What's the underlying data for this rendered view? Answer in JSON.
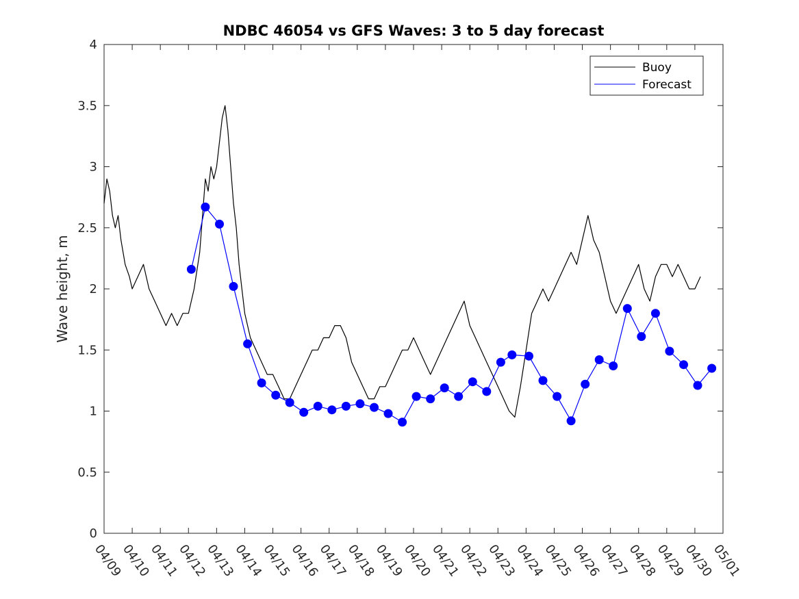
{
  "chart_data": {
    "type": "line",
    "title": "NDBC 46054 vs GFS Waves: 3 to 5 day forecast",
    "xlabel": "",
    "ylabel": "Wave height, m",
    "ylim": [
      0,
      4
    ],
    "yticks": [
      0,
      0.5,
      1,
      1.5,
      2,
      2.5,
      3,
      3.5,
      4
    ],
    "ytick_labels": [
      "0",
      "0.5",
      "1",
      "1.5",
      "2",
      "2.5",
      "3",
      "3.5",
      "4"
    ],
    "xlim": [
      0,
      22
    ],
    "xticks": [
      0,
      1,
      2,
      3,
      4,
      5,
      6,
      7,
      8,
      9,
      10,
      11,
      12,
      13,
      14,
      15,
      16,
      17,
      18,
      19,
      20,
      21,
      22
    ],
    "xtick_labels": [
      "04/09",
      "04/10",
      "04/11",
      "04/12",
      "04/13",
      "04/14",
      "04/15",
      "04/16",
      "04/17",
      "04/18",
      "04/19",
      "04/20",
      "04/21",
      "04/22",
      "04/23",
      "04/24",
      "04/25",
      "04/26",
      "04/27",
      "04/28",
      "04/29",
      "04/30",
      "05/01"
    ],
    "grid": false,
    "legend": {
      "position": "top-right",
      "entries": [
        "Buoy",
        "Forecast"
      ]
    },
    "series": [
      {
        "name": "Buoy",
        "color": "#000000",
        "x": [
          0.0,
          0.1,
          0.2,
          0.3,
          0.4,
          0.5,
          0.6,
          0.75,
          0.9,
          1.0,
          1.2,
          1.4,
          1.6,
          1.8,
          2.0,
          2.2,
          2.4,
          2.6,
          2.8,
          3.0,
          3.2,
          3.4,
          3.5,
          3.6,
          3.7,
          3.8,
          3.9,
          4.0,
          4.1,
          4.2,
          4.3,
          4.4,
          4.5,
          4.6,
          4.7,
          4.8,
          4.9,
          5.0,
          5.2,
          5.4,
          5.6,
          5.8,
          6.0,
          6.2,
          6.4,
          6.6,
          6.8,
          7.0,
          7.2,
          7.4,
          7.6,
          7.8,
          8.0,
          8.2,
          8.4,
          8.6,
          8.8,
          9.0,
          9.2,
          9.4,
          9.6,
          9.8,
          10.0,
          10.2,
          10.4,
          10.6,
          10.8,
          11.0,
          11.2,
          11.4,
          11.6,
          11.8,
          12.0,
          12.2,
          12.4,
          12.6,
          12.8,
          13.0,
          13.2,
          13.4,
          13.6,
          13.8,
          14.0,
          14.2,
          14.4,
          14.6,
          14.8,
          15.0,
          15.2,
          15.4,
          15.6,
          15.8,
          16.0,
          16.2,
          16.4,
          16.6,
          16.8,
          17.0,
          17.2,
          17.4,
          17.6,
          17.8,
          18.0,
          18.2,
          18.4,
          18.6,
          18.8,
          19.0,
          19.2,
          19.4,
          19.6,
          19.8,
          20.0,
          20.2,
          20.4,
          20.6,
          20.8,
          21.0,
          21.2
        ],
        "values": [
          2.7,
          2.9,
          2.8,
          2.6,
          2.5,
          2.6,
          2.4,
          2.2,
          2.1,
          2.0,
          2.1,
          2.2,
          2.0,
          1.9,
          1.8,
          1.7,
          1.8,
          1.7,
          1.8,
          1.8,
          2.0,
          2.3,
          2.6,
          2.9,
          2.8,
          3.0,
          2.9,
          3.0,
          3.2,
          3.4,
          3.5,
          3.3,
          3.0,
          2.7,
          2.5,
          2.2,
          2.0,
          1.8,
          1.6,
          1.5,
          1.4,
          1.3,
          1.3,
          1.2,
          1.1,
          1.1,
          1.2,
          1.3,
          1.4,
          1.5,
          1.5,
          1.6,
          1.6,
          1.7,
          1.7,
          1.6,
          1.4,
          1.3,
          1.2,
          1.1,
          1.1,
          1.2,
          1.2,
          1.3,
          1.4,
          1.5,
          1.5,
          1.6,
          1.5,
          1.4,
          1.3,
          1.4,
          1.5,
          1.6,
          1.7,
          1.8,
          1.9,
          1.7,
          1.6,
          1.5,
          1.4,
          1.3,
          1.2,
          1.1,
          1.0,
          0.95,
          1.2,
          1.5,
          1.8,
          1.9,
          2.0,
          1.9,
          2.0,
          2.1,
          2.2,
          2.3,
          2.2,
          2.4,
          2.6,
          2.4,
          2.3,
          2.1,
          1.9,
          1.8,
          1.9,
          2.0,
          2.1,
          2.2,
          2.0,
          1.9,
          2.1,
          2.2,
          2.2,
          2.1,
          2.2,
          2.1,
          2.0,
          2.0,
          2.1
        ]
      },
      {
        "name": "Forecast",
        "color": "#0000ff",
        "x": [
          3.1,
          3.6,
          4.1,
          4.6,
          5.1,
          5.6,
          6.1,
          6.6,
          7.1,
          7.6,
          8.1,
          8.6,
          9.1,
          9.6,
          10.1,
          10.6,
          11.1,
          11.6,
          12.1,
          12.6,
          13.1,
          13.6,
          14.1,
          14.5,
          15.1,
          15.6,
          16.1,
          16.6,
          17.1,
          17.6,
          18.1,
          18.6,
          19.1,
          19.6,
          20.1,
          20.6,
          21.1,
          21.6
        ],
        "values": [
          2.16,
          2.67,
          2.53,
          2.02,
          1.55,
          1.23,
          1.13,
          1.07,
          0.99,
          1.04,
          1.01,
          1.04,
          1.06,
          1.03,
          0.98,
          0.91,
          1.12,
          1.1,
          1.19,
          1.12,
          1.24,
          1.16,
          1.4,
          1.46,
          1.45,
          1.25,
          1.12,
          0.92,
          1.22,
          1.42,
          1.37,
          1.84,
          1.61,
          1.8,
          1.49,
          1.38,
          1.21,
          1.35
        ]
      }
    ]
  }
}
